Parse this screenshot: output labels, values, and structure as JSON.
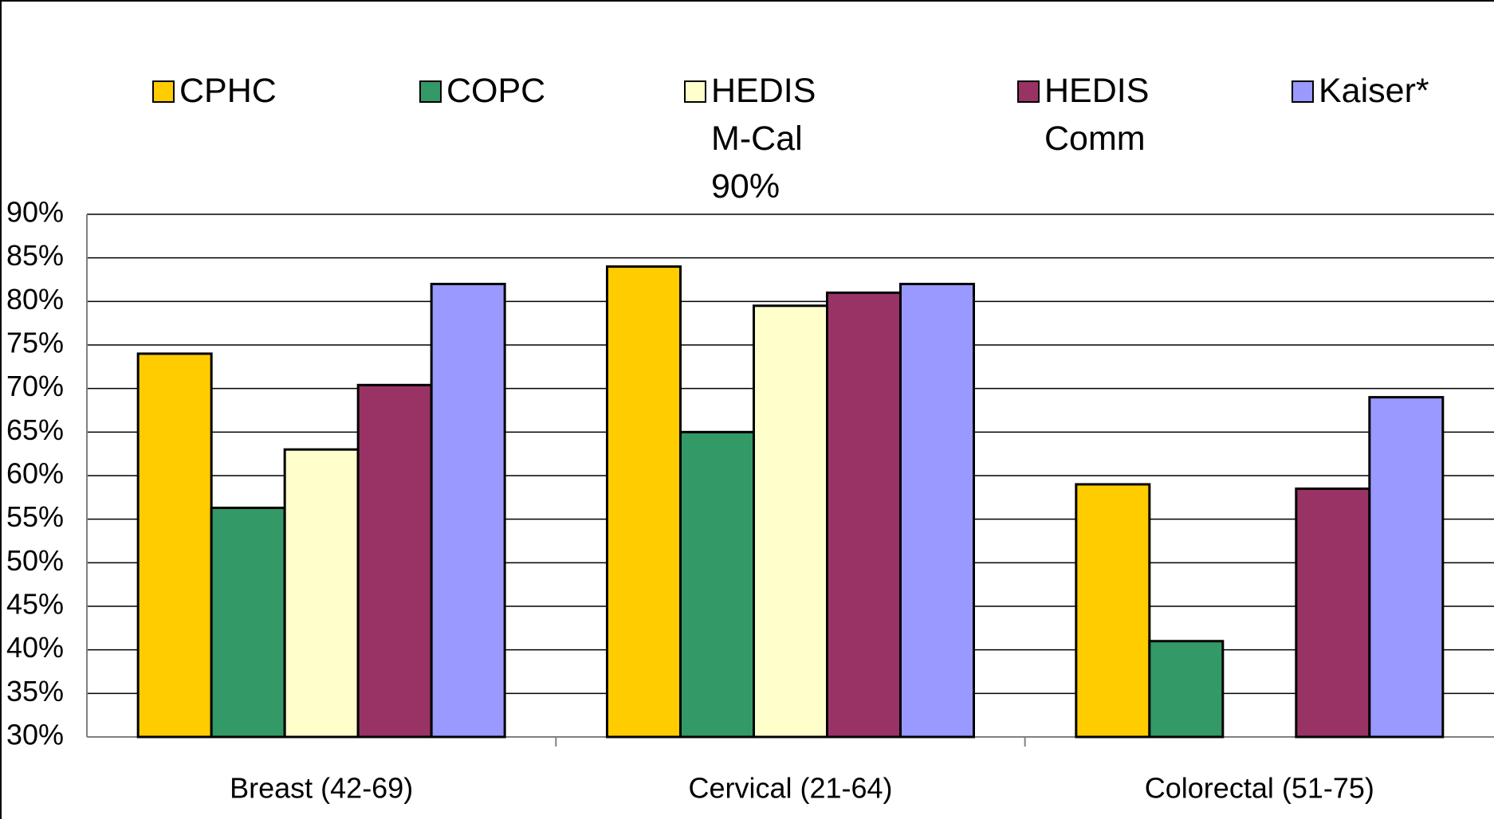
{
  "chart_data": {
    "type": "bar",
    "categories": [
      "Breast (42-69)",
      "Cervical (21-64)",
      "Colorectal (51-75)"
    ],
    "series": [
      {
        "name": "CPHC",
        "color": "#ffcc00",
        "values": [
          74,
          84,
          59
        ]
      },
      {
        "name": "COPC",
        "color": "#339966",
        "values": [
          56.3,
          65,
          41
        ]
      },
      {
        "name": "HEDIS M-Cal 90%",
        "color": "#ffffcc",
        "values": [
          63,
          79.5,
          null
        ]
      },
      {
        "name": "HEDIS Comm",
        "color": "#993366",
        "values": [
          70.4,
          81,
          58.5
        ]
      },
      {
        "name": "Kaiser*",
        "color": "#9999ff",
        "values": [
          82,
          82,
          69
        ]
      }
    ],
    "ylim": [
      30,
      90
    ],
    "yticks": [
      {
        "value": 30,
        "label": "30%"
      },
      {
        "value": 35,
        "label": "35%"
      },
      {
        "value": 40,
        "label": "40%"
      },
      {
        "value": 45,
        "label": "45%"
      },
      {
        "value": 50,
        "label": "50%"
      },
      {
        "value": 55,
        "label": "55%"
      },
      {
        "value": 60,
        "label": "60%"
      },
      {
        "value": 65,
        "label": "65%"
      },
      {
        "value": 70,
        "label": "70%"
      },
      {
        "value": 75,
        "label": "75%"
      },
      {
        "value": 80,
        "label": "80%"
      },
      {
        "value": 85,
        "label": "85%"
      },
      {
        "value": 90,
        "label": "90%"
      }
    ],
    "grid": true,
    "legend": "top"
  }
}
